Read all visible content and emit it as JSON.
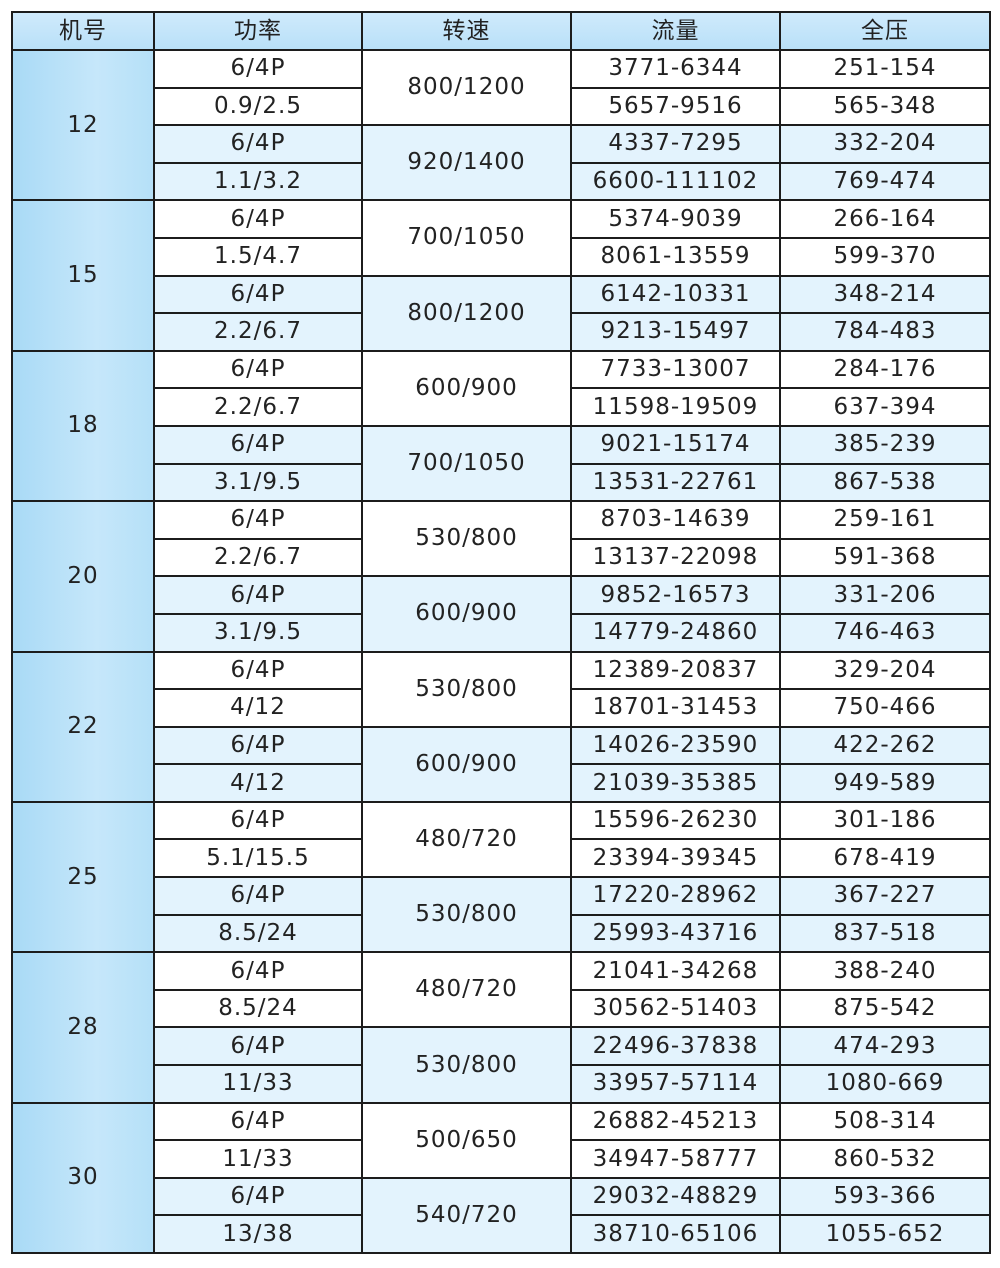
{
  "headers": [
    "机号",
    "功率",
    "转速",
    "流量",
    "全压"
  ],
  "groups": [
    {
      "machine": "12",
      "blocks": [
        {
          "speed": "800/1200",
          "rows": [
            [
              "6/4P",
              "3771-6344",
              "251-154"
            ],
            [
              "0.9/2.5",
              "5657-9516",
              "565-348"
            ]
          ]
        },
        {
          "speed": "920/1400",
          "rows": [
            [
              "6/4P",
              "4337-7295",
              "332-204"
            ],
            [
              "1.1/3.2",
              "6600-111102",
              "769-474"
            ]
          ]
        }
      ]
    },
    {
      "machine": "15",
      "blocks": [
        {
          "speed": "700/1050",
          "rows": [
            [
              "6/4P",
              "5374-9039",
              "266-164"
            ],
            [
              "1.5/4.7",
              "8061-13559",
              "599-370"
            ]
          ]
        },
        {
          "speed": "800/1200",
          "rows": [
            [
              "6/4P",
              "6142-10331",
              "348-214"
            ],
            [
              "2.2/6.7",
              "9213-15497",
              "784-483"
            ]
          ]
        }
      ]
    },
    {
      "machine": "18",
      "blocks": [
        {
          "speed": "600/900",
          "rows": [
            [
              "6/4P",
              "7733-13007",
              "284-176"
            ],
            [
              "2.2/6.7",
              "11598-19509",
              "637-394"
            ]
          ]
        },
        {
          "speed": "700/1050",
          "rows": [
            [
              "6/4P",
              "9021-15174",
              "385-239"
            ],
            [
              "3.1/9.5",
              "13531-22761",
              "867-538"
            ]
          ]
        }
      ]
    },
    {
      "machine": "20",
      "blocks": [
        {
          "speed": "530/800",
          "rows": [
            [
              "6/4P",
              "8703-14639",
              "259-161"
            ],
            [
              "2.2/6.7",
              "13137-22098",
              "591-368"
            ]
          ]
        },
        {
          "speed": "600/900",
          "rows": [
            [
              "6/4P",
              "9852-16573",
              "331-206"
            ],
            [
              "3.1/9.5",
              "14779-24860",
              "746-463"
            ]
          ]
        }
      ]
    },
    {
      "machine": "22",
      "blocks": [
        {
          "speed": "530/800",
          "rows": [
            [
              "6/4P",
              "12389-20837",
              "329-204"
            ],
            [
              "4/12",
              "18701-31453",
              "750-466"
            ]
          ]
        },
        {
          "speed": "600/900",
          "rows": [
            [
              "6/4P",
              "14026-23590",
              "422-262"
            ],
            [
              "4/12",
              "21039-35385",
              "949-589"
            ]
          ]
        }
      ]
    },
    {
      "machine": "25",
      "blocks": [
        {
          "speed": "480/720",
          "rows": [
            [
              "6/4P",
              "15596-26230",
              "301-186"
            ],
            [
              "5.1/15.5",
              "23394-39345",
              "678-419"
            ]
          ]
        },
        {
          "speed": "530/800",
          "rows": [
            [
              "6/4P",
              "17220-28962",
              "367-227"
            ],
            [
              "8.5/24",
              "25993-43716",
              "837-518"
            ]
          ]
        }
      ]
    },
    {
      "machine": "28",
      "blocks": [
        {
          "speed": "480/720",
          "rows": [
            [
              "6/4P",
              "21041-34268",
              "388-240"
            ],
            [
              "8.5/24",
              "30562-51403",
              "875-542"
            ]
          ]
        },
        {
          "speed": "530/800",
          "rows": [
            [
              "6/4P",
              "22496-37838",
              "474-293"
            ],
            [
              "11/33",
              "33957-57114",
              "1080-669"
            ]
          ]
        }
      ]
    },
    {
      "machine": "30",
      "blocks": [
        {
          "speed": "500/650",
          "rows": [
            [
              "6/4P",
              "26882-45213",
              "508-314"
            ],
            [
              "11/33",
              "34947-58777",
              "860-532"
            ]
          ]
        },
        {
          "speed": "540/720",
          "rows": [
            [
              "6/4P",
              "29032-48829",
              "593-366"
            ],
            [
              "13/38",
              "38710-65106",
              "1055-652"
            ]
          ]
        }
      ]
    }
  ]
}
